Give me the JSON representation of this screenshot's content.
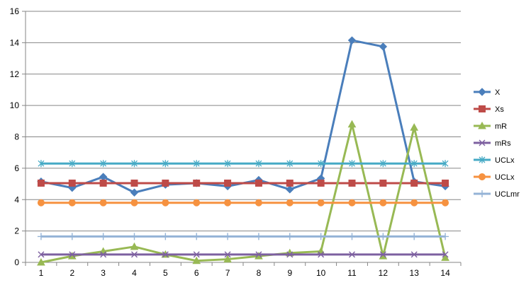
{
  "chart_data": {
    "type": "line",
    "title": "",
    "xlabel": "",
    "ylabel": "",
    "x": [
      1,
      2,
      3,
      4,
      5,
      6,
      7,
      8,
      9,
      10,
      11,
      12,
      13,
      14
    ],
    "ylim": [
      0,
      16
    ],
    "yticks": [
      0,
      2,
      4,
      6,
      8,
      10,
      12,
      14,
      16
    ],
    "grid": true,
    "legend_position": "right",
    "series": [
      {
        "name": "X",
        "color": "#4a7ebb",
        "marker": "diamond",
        "values": [
          5.15,
          4.75,
          5.45,
          4.45,
          4.95,
          5.05,
          4.85,
          5.25,
          4.65,
          5.35,
          14.15,
          13.75,
          5.15,
          4.85
        ]
      },
      {
        "name": "Xs",
        "color": "#be4b48",
        "marker": "square",
        "values": [
          5.05,
          5.05,
          5.05,
          5.05,
          5.05,
          5.05,
          5.05,
          5.05,
          5.05,
          5.05,
          5.05,
          5.05,
          5.05,
          5.05
        ]
      },
      {
        "name": "mR",
        "color": "#98b954",
        "marker": "triangle",
        "values": [
          0,
          0.4,
          0.7,
          1.0,
          0.5,
          0.1,
          0.2,
          0.4,
          0.6,
          0.7,
          8.8,
          0.4,
          8.6,
          0.3
        ]
      },
      {
        "name": "mRs",
        "color": "#7d60a0",
        "marker": "x",
        "values": [
          0.5,
          0.5,
          0.5,
          0.5,
          0.5,
          0.5,
          0.5,
          0.5,
          0.5,
          0.5,
          0.5,
          0.5,
          0.5,
          0.5
        ]
      },
      {
        "name": "UCLx",
        "color": "#46aac5",
        "marker": "asterisk",
        "values": [
          6.3,
          6.3,
          6.3,
          6.3,
          6.3,
          6.3,
          6.3,
          6.3,
          6.3,
          6.3,
          6.3,
          6.3,
          6.3,
          6.3
        ]
      },
      {
        "name": "UCLx",
        "color": "#f69240",
        "marker": "circle",
        "values": [
          3.8,
          3.8,
          3.8,
          3.8,
          3.8,
          3.8,
          3.8,
          3.8,
          3.8,
          3.8,
          3.8,
          3.8,
          3.8,
          3.8
        ]
      },
      {
        "name": "UCLmr",
        "color": "#94b3d6",
        "marker": "plus",
        "values": [
          1.65,
          1.65,
          1.65,
          1.65,
          1.65,
          1.65,
          1.65,
          1.65,
          1.65,
          1.65,
          1.65,
          1.65,
          1.65,
          1.65
        ]
      }
    ]
  }
}
